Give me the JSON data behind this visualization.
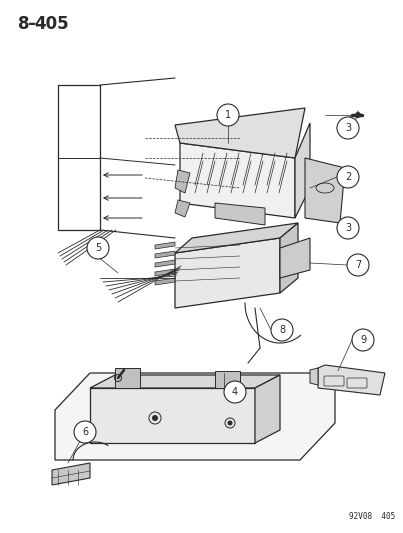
{
  "title": "8–405",
  "footer": "92V08  405",
  "bg_color": "#ffffff",
  "ink_color": "#2a2a2a",
  "fig_w": 4.03,
  "fig_h": 5.33,
  "dpi": 100
}
